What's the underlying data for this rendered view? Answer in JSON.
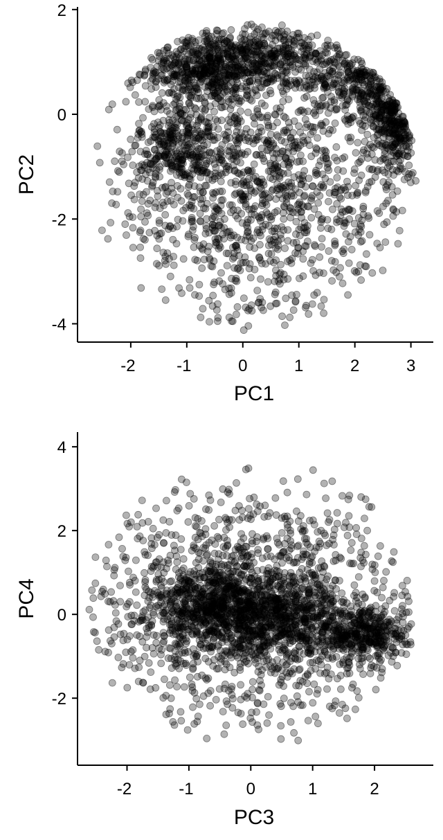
{
  "chart_data": [
    {
      "type": "scatter",
      "xlabel": "PC1",
      "ylabel": "PC2",
      "xlim": [
        -2.95,
        3.4
      ],
      "ylim": [
        -4.35,
        2.05
      ],
      "xticks": [
        -2,
        -1,
        0,
        1,
        2,
        3
      ],
      "xtick_labels": [
        "-2",
        "-1",
        "0",
        "1",
        "2",
        "3"
      ],
      "yticks": [
        -4,
        -2,
        0,
        2
      ],
      "ytick_labels": [
        "-4",
        "-2",
        "0",
        "2"
      ],
      "grid": false,
      "point_color": "#000000",
      "point_opacity": 0.3,
      "description_of_distribution": "elliptical cloud x in [-2.7,3.1], y in [-4.1,1.7]; dense arc along top from (-1.3,0.5) to (3.0,-0.2); dense lobe at (-1.1,-0.6)",
      "points": {
        "clusters": [
          {
            "cx": -0.6,
            "cy": 0.9,
            "sx": 0.55,
            "sy": 0.35,
            "n": 550
          },
          {
            "cx": 0.6,
            "cy": 1.1,
            "sx": 0.5,
            "sy": 0.3,
            "n": 260
          },
          {
            "cx": 2.2,
            "cy": 0.7,
            "sx": 0.45,
            "sy": 0.4,
            "n": 260
          },
          {
            "cx": 2.8,
            "cy": -0.1,
            "sx": 0.25,
            "sy": 0.45,
            "n": 260
          },
          {
            "cx": -1.15,
            "cy": -0.6,
            "sx": 0.35,
            "sy": 0.45,
            "n": 280
          },
          {
            "cx": 0.3,
            "cy": -1.4,
            "sx": 1.5,
            "sy": 1.35,
            "n": 1300
          }
        ],
        "ellipse": {
          "cx": 0.2,
          "cy": -1.2,
          "rx": 2.9,
          "ry": 2.95
        }
      }
    },
    {
      "type": "scatter",
      "xlabel": "PC3",
      "ylabel": "PC4",
      "xlim": [
        -2.8,
        2.95
      ],
      "ylim": [
        -3.6,
        4.35
      ],
      "xticks": [
        -2,
        -1,
        0,
        1,
        2
      ],
      "xtick_labels": [
        "-2",
        "-1",
        "0",
        "1",
        "2"
      ],
      "yticks": [
        -2,
        0,
        2,
        4
      ],
      "ytick_labels": [
        "-2",
        "0",
        "2",
        "4"
      ],
      "grid": false,
      "point_color": "#000000",
      "point_opacity": 0.3,
      "description_of_distribution": "round cloud x in [-2.6,2.7], y in [-3.1,4.0]; dense band from (-1.3,0.1) to (0.6,0.0); dense blob at (1.9,-0.4)",
      "points": {
        "clusters": [
          {
            "cx": -0.5,
            "cy": 0.1,
            "sx": 0.55,
            "sy": 0.5,
            "n": 700
          },
          {
            "cx": 0.6,
            "cy": -0.05,
            "sx": 0.5,
            "sy": 0.5,
            "n": 450
          },
          {
            "cx": 1.85,
            "cy": -0.45,
            "sx": 0.35,
            "sy": 0.35,
            "n": 350
          },
          {
            "cx": 0.0,
            "cy": 0.2,
            "sx": 1.35,
            "sy": 1.45,
            "n": 1300
          }
        ],
        "ellipse": {
          "cx": 0.0,
          "cy": 0.25,
          "rx": 2.7,
          "ry": 3.45
        }
      }
    }
  ]
}
